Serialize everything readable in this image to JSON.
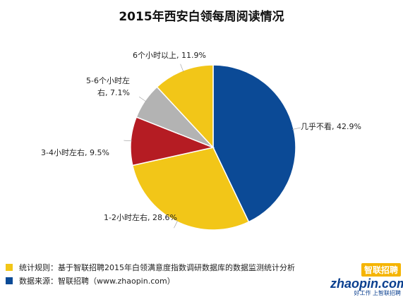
{
  "chart_data": {
    "type": "pie",
    "title": "2015年西安白领每周阅读情况",
    "start": "12 o'clock, clockwise",
    "slices": [
      {
        "label": "几乎不看, 42.9%",
        "value": 42.9,
        "color": "#0b4a96"
      },
      {
        "label": "1-2小时左右, 28.6%",
        "value": 28.6,
        "color": "#f2c618"
      },
      {
        "label": "3-4小时左右, 9.5%",
        "value": 9.5,
        "color": "#b51c23"
      },
      {
        "label": "5-6个小时左右, 7.1%",
        "value": 7.1,
        "color": "#b3b3b3"
      },
      {
        "label": "6个小时以上, 11.9%",
        "value": 11.9,
        "color": "#f2c618"
      }
    ]
  },
  "labels_display": {
    "l0": "几乎不看, 42.9%",
    "l1": "1-2小时左右, 28.6%",
    "l2": "3-4小时左右, 9.5%",
    "l3a": "5-6个小时左",
    "l3b": "右, 7.1%",
    "l4": "6个小时以上, 11.9%"
  },
  "notes": [
    {
      "text": "统计规则：基于智联招聘2015年白领满意度指数调研数据库的数据监测统计分析",
      "color": "#f2c618"
    },
    {
      "text": "数据来源：智联招聘（www.zhaopin.com）",
      "color": "#0b4a96"
    }
  ],
  "brand": {
    "top": "智联招聘",
    "main": "zhaopin.com",
    "sub": "好工作  上智联招聘"
  }
}
